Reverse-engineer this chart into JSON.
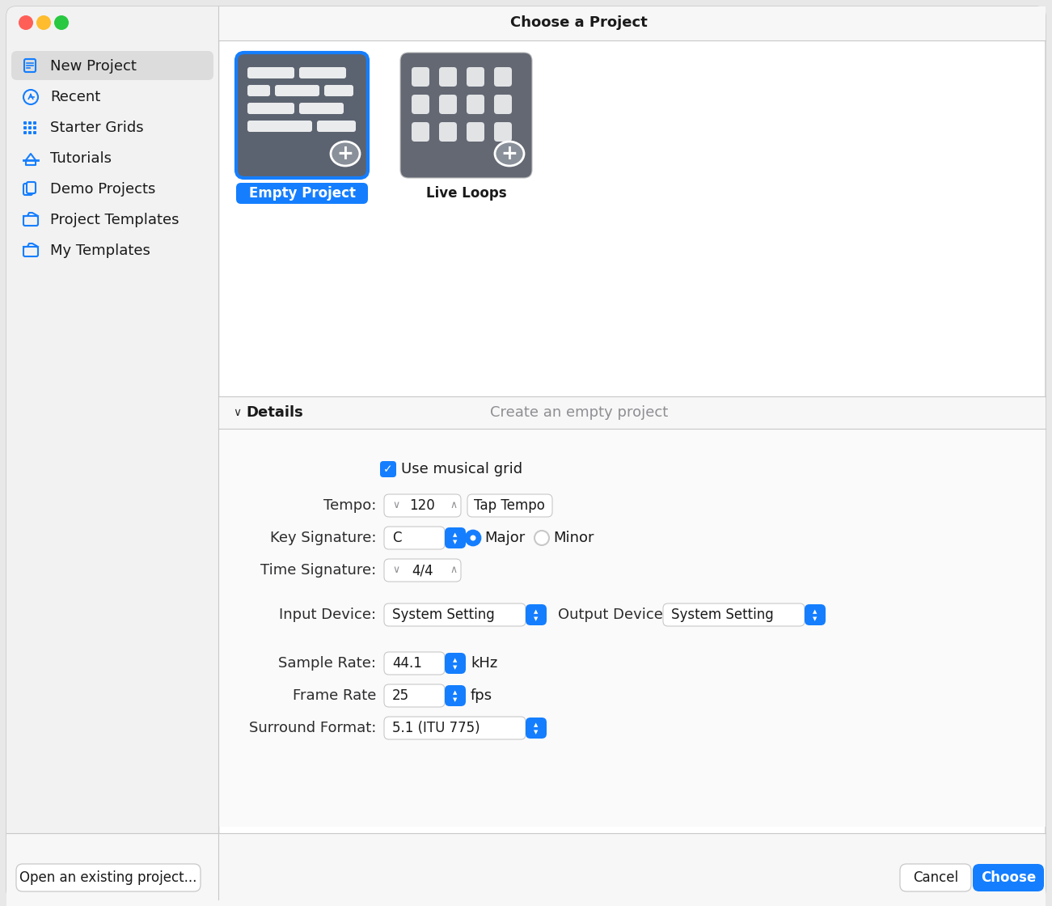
{
  "title": "Choose a Project",
  "bg_color": "#e8e8e8",
  "window_bg": "#ffffff",
  "sidebar_bg": "#f2f2f2",
  "sidebar_selected_bg": "#dcdcdc",
  "sidebar_items": [
    "New Project",
    "Recent",
    "Starter Grids",
    "Tutorials",
    "Demo Projects",
    "Project Templates",
    "My Templates"
  ],
  "sidebar_selected": 0,
  "traffic_light_colors": [
    "#ff5f57",
    "#febc2e",
    "#28c840"
  ],
  "details_label": "Details",
  "details_subtitle": "Create an empty project",
  "use_musical_grid": "Use musical grid",
  "tempo_label": "Tempo:",
  "tempo_value": "120",
  "tap_tempo": "Tap Tempo",
  "key_sig_label": "Key Signature:",
  "key_sig_value": "C",
  "major_label": "Major",
  "minor_label": "Minor",
  "time_sig_label": "Time Signature:",
  "time_sig_value": "4/4",
  "input_device_label": "Input Device:",
  "input_device_value": "System Setting",
  "output_device_label": "Output Device:",
  "output_device_value": "System Setting",
  "sample_rate_label": "Sample Rate:",
  "sample_rate_value": "44.1",
  "sample_rate_unit": "kHz",
  "frame_rate_label": "Frame Rate",
  "frame_rate_value": "25",
  "frame_rate_unit": "fps",
  "surround_label": "Surround Format:",
  "surround_value": "5.1 (ITU 775)",
  "open_project_btn": "Open an existing project...",
  "cancel_btn": "Cancel",
  "choose_btn": "Choose",
  "accent_color": "#147EFF",
  "choose_btn_color": "#147EFF",
  "choose_btn_text": "#ffffff",
  "text_color": "#1a1a1a",
  "label_color": "#2c2c2e",
  "gray_text": "#8e8e93",
  "separator_color": "#c8c8c8",
  "icon_color": "#147EFF",
  "card_bg_selected": "#5c6370",
  "card_bg_normal": "#636873",
  "plus_circle_color": "#8a9099",
  "empty_project_label_bg": "#147EFF",
  "title_bar_bg": "#f7f7f7",
  "bottom_bar_bg": "#f7f7f7",
  "details_row_bg": "#f7f7f7"
}
